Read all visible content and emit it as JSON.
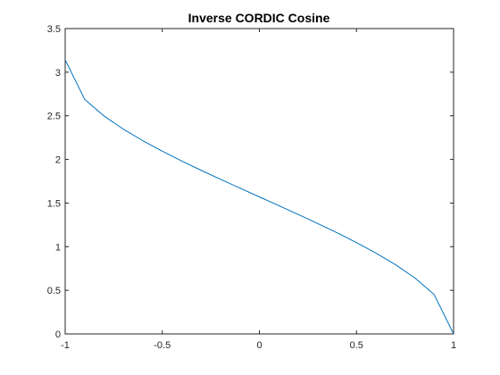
{
  "chart_data": {
    "type": "line",
    "title": "Inverse CORDIC Cosine",
    "xlabel": "",
    "ylabel": "",
    "xlim": [
      -1,
      1
    ],
    "ylim": [
      0,
      3.5
    ],
    "xticks": [
      -1,
      -0.5,
      0,
      0.5,
      1
    ],
    "xtick_labels": [
      "-1",
      "-0.5",
      "0",
      "0.5",
      "1"
    ],
    "yticks": [
      0,
      0.5,
      1,
      1.5,
      2,
      2.5,
      3,
      3.5
    ],
    "ytick_labels": [
      "0",
      "0.5",
      "1",
      "1.5",
      "2",
      "2.5",
      "3",
      "3.5"
    ],
    "grid": false,
    "line_color": "#0072BD",
    "series": [
      {
        "x": [
          -1,
          -0.9,
          -0.8,
          -0.7,
          -0.6,
          -0.5,
          -0.4,
          -0.3,
          -0.2,
          -0.1,
          0,
          0.1,
          0.2,
          0.3,
          0.4,
          0.5,
          0.6,
          0.7,
          0.8,
          0.9,
          1
        ],
        "y": [
          3.1416,
          2.6906,
          2.4981,
          2.3462,
          2.2143,
          2.0944,
          1.9823,
          1.8755,
          1.7722,
          1.671,
          1.5708,
          1.4706,
          1.3694,
          1.2661,
          1.1593,
          1.0472,
          0.9273,
          0.7954,
          0.6435,
          0.451,
          0.0
        ]
      }
    ]
  }
}
